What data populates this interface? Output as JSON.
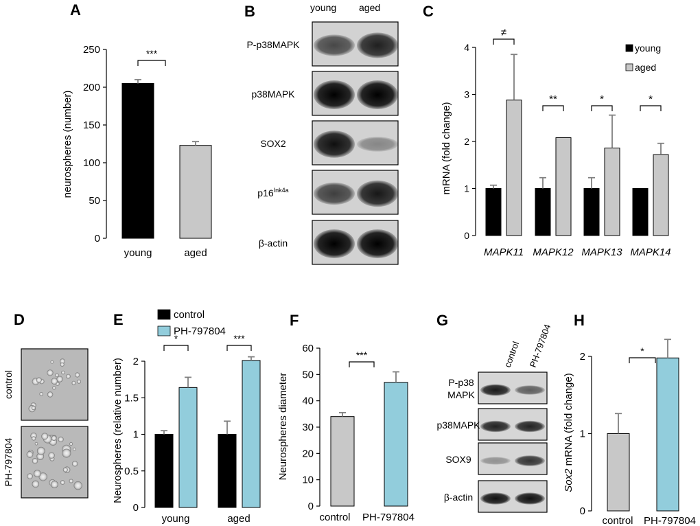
{
  "panel_letters": {
    "A": "A",
    "B": "B",
    "C": "C",
    "D": "D",
    "E": "E",
    "F": "F",
    "G": "G",
    "H": "H"
  },
  "colors": {
    "black": "#000000",
    "grey": "#c8c8c8",
    "light_blue": "#92cddc",
    "error_bar": "#808080"
  },
  "blot_B": {
    "columns": [
      "young",
      "aged"
    ],
    "rows": [
      {
        "label": "P-p38MAPK",
        "bands": [
          0.55,
          0.8
        ]
      },
      {
        "label": "p38MAPK",
        "bands": [
          1.0,
          1.0
        ]
      },
      {
        "label": "SOX2",
        "bands": [
          0.9,
          0.15
        ]
      },
      {
        "label_main": "p16",
        "label_sup": "Ink4a",
        "bands": [
          0.6,
          0.85
        ]
      },
      {
        "label": "β-actin",
        "bands": [
          1.0,
          1.0
        ]
      }
    ]
  },
  "images_D": {
    "rows": [
      "control",
      "PH-797804"
    ]
  },
  "blot_G": {
    "columns": [
      "control",
      "PH-797804"
    ],
    "rows": [
      {
        "label_lines": [
          "P-p38",
          "MAPK"
        ],
        "bands": [
          0.85,
          0.45
        ]
      },
      {
        "label_lines": [
          "p38MAPK"
        ],
        "bands": [
          0.8,
          0.8
        ]
      },
      {
        "label_lines": [
          "SOX9"
        ],
        "bands": [
          0.15,
          0.7
        ]
      },
      {
        "label_lines": [
          "β-actin"
        ],
        "bands": [
          0.9,
          0.9
        ]
      }
    ]
  },
  "chart_data": [
    {
      "id": "A",
      "type": "bar",
      "categories": [
        "young",
        "aged"
      ],
      "values": [
        205,
        123
      ],
      "errors": [
        5,
        5
      ],
      "colors": [
        "#000000",
        "#c8c8c8"
      ],
      "ylabel": "neurospheres (number)",
      "ylim": [
        0,
        250
      ],
      "yticks": [
        "0",
        "50",
        "100",
        "150",
        "200",
        "250"
      ],
      "significance": [
        {
          "between": [
            0,
            1
          ],
          "label": "***"
        }
      ]
    },
    {
      "id": "C",
      "type": "bar",
      "categories": [
        "MAPK11",
        "MAPK12",
        "MAPK13",
        "MAPK14"
      ],
      "series": [
        {
          "name": "young",
          "values": [
            1.0,
            1.0,
            1.0,
            1.0
          ],
          "errors": [
            0.07,
            0.23,
            0.23,
            0.0
          ],
          "color": "#000000"
        },
        {
          "name": "aged",
          "values": [
            2.88,
            2.08,
            1.86,
            1.72
          ],
          "errors": [
            0.97,
            0.0,
            0.7,
            0.24
          ],
          "color": "#c8c8c8"
        }
      ],
      "ylabel": "mRNA (fold change)",
      "ylim": [
        0,
        4
      ],
      "yticks": [
        "0",
        "1",
        "2",
        "3",
        "4"
      ],
      "legend_position": "top-right",
      "significance": [
        "≠",
        "**",
        "*",
        "*"
      ]
    },
    {
      "id": "E",
      "type": "bar",
      "categories": [
        "young",
        "aged"
      ],
      "series": [
        {
          "name": "control",
          "values": [
            1.0,
            1.0
          ],
          "errors": [
            0.05,
            0.18
          ],
          "color": "#000000"
        },
        {
          "name": "PH-797804",
          "values": [
            1.64,
            2.01
          ],
          "errors": [
            0.14,
            0.05
          ],
          "color": "#92cddc"
        }
      ],
      "ylabel": "Neurospheres (relative number)",
      "ylim": [
        0,
        2
      ],
      "yticks": [
        "0",
        "0.5",
        "1",
        "1.5",
        "2"
      ],
      "legend_position": "top",
      "significance": [
        "*",
        "***"
      ]
    },
    {
      "id": "F",
      "type": "bar",
      "categories": [
        "control",
        "PH-797804"
      ],
      "values": [
        34,
        47
      ],
      "errors": [
        1.5,
        4
      ],
      "colors": [
        "#c8c8c8",
        "#92cddc"
      ],
      "ylabel": "Neurospheres diameter",
      "ylim": [
        0,
        60
      ],
      "yticks": [
        "0",
        "10",
        "20",
        "30",
        "40",
        "50",
        "60"
      ],
      "significance": [
        {
          "between": [
            0,
            1
          ],
          "label": "***"
        }
      ]
    },
    {
      "id": "H",
      "type": "bar",
      "categories": [
        "control",
        "PH-797804"
      ],
      "values": [
        1.0,
        1.98
      ],
      "errors": [
        0.26,
        0.24
      ],
      "colors": [
        "#c8c8c8",
        "#92cddc"
      ],
      "ylabel_italic": "Sox2",
      "ylabel_rest": " mRNA (fold change)",
      "ylim": [
        0,
        2
      ],
      "yticks": [
        "0",
        "1",
        "2"
      ],
      "significance": [
        {
          "between": [
            0,
            1
          ],
          "label": "*"
        }
      ]
    }
  ]
}
